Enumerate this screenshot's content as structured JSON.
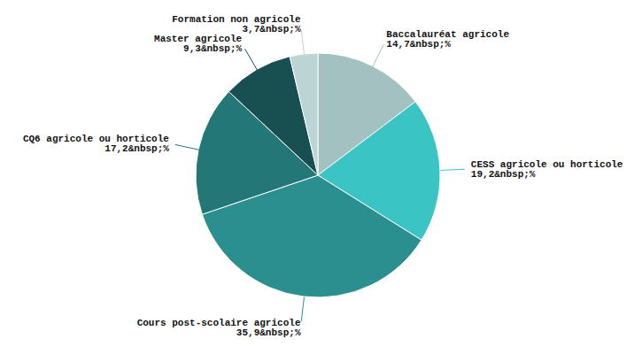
{
  "chart_data": {
    "type": "pie",
    "categories": [
      "Baccalauréat agricole",
      "CESS agricole ou horticole",
      "Cours post-scolaire agricole",
      "CQ6 agricole ou horticole",
      "Master agricole",
      "Formation non agricole"
    ],
    "values": [
      14.7,
      19.2,
      35.9,
      17.2,
      9.3,
      3.7
    ],
    "value_labels": [
      "14,7&nbsp;%",
      "19,2&nbsp;%",
      "35,9&nbsp;%",
      "17,2&nbsp;%",
      "9,3&nbsp;%",
      "3,7&nbsp;%"
    ],
    "colors": [
      "#a3c1c0",
      "#3ac5c4",
      "#2b8f8f",
      "#237777",
      "#184f50",
      "#bcd5d4"
    ],
    "data_labels": true
  }
}
